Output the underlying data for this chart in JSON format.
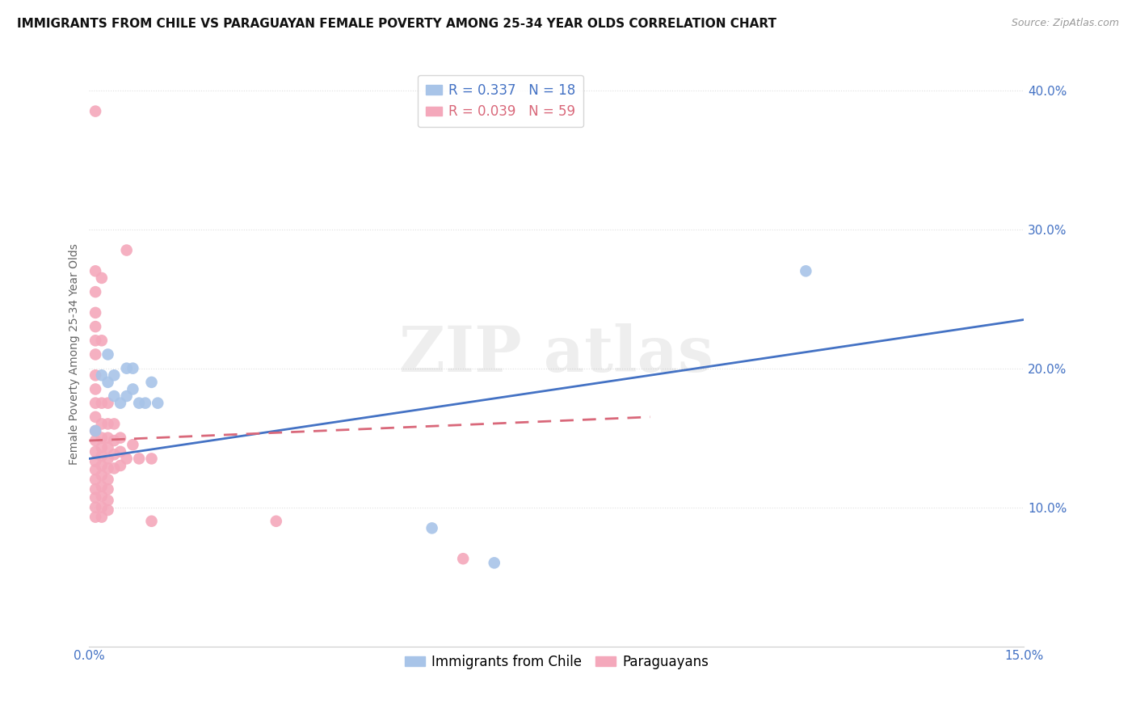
{
  "title": "IMMIGRANTS FROM CHILE VS PARAGUAYAN FEMALE POVERTY AMONG 25-34 YEAR OLDS CORRELATION CHART",
  "source": "Source: ZipAtlas.com",
  "xlabel": "",
  "ylabel": "Female Poverty Among 25-34 Year Olds",
  "xlim": [
    0.0,
    0.15
  ],
  "ylim": [
    0.0,
    0.42
  ],
  "xticks": [
    0.0,
    0.15
  ],
  "xtick_labels": [
    "0.0%",
    "15.0%"
  ],
  "yticks": [
    0.1,
    0.2,
    0.3,
    0.4
  ],
  "ytick_labels": [
    "10.0%",
    "20.0%",
    "30.0%",
    "40.0%"
  ],
  "blue_R": 0.337,
  "blue_N": 18,
  "pink_R": 0.039,
  "pink_N": 59,
  "blue_color": "#a8c4e8",
  "pink_color": "#f4a8bb",
  "blue_line_color": "#4472C4",
  "pink_line_color": "#d9687a",
  "legend_label_blue": "Immigrants from Chile",
  "legend_label_pink": "Paraguayans",
  "blue_points": [
    [
      0.001,
      0.155
    ],
    [
      0.002,
      0.195
    ],
    [
      0.003,
      0.19
    ],
    [
      0.003,
      0.21
    ],
    [
      0.004,
      0.18
    ],
    [
      0.004,
      0.195
    ],
    [
      0.005,
      0.175
    ],
    [
      0.006,
      0.2
    ],
    [
      0.006,
      0.18
    ],
    [
      0.007,
      0.2
    ],
    [
      0.007,
      0.185
    ],
    [
      0.008,
      0.175
    ],
    [
      0.009,
      0.175
    ],
    [
      0.01,
      0.19
    ],
    [
      0.011,
      0.175
    ],
    [
      0.055,
      0.085
    ],
    [
      0.065,
      0.06
    ],
    [
      0.115,
      0.27
    ]
  ],
  "pink_points": [
    [
      0.001,
      0.385
    ],
    [
      0.001,
      0.27
    ],
    [
      0.001,
      0.255
    ],
    [
      0.001,
      0.24
    ],
    [
      0.001,
      0.23
    ],
    [
      0.001,
      0.22
    ],
    [
      0.001,
      0.21
    ],
    [
      0.001,
      0.195
    ],
    [
      0.001,
      0.185
    ],
    [
      0.001,
      0.175
    ],
    [
      0.001,
      0.165
    ],
    [
      0.001,
      0.155
    ],
    [
      0.001,
      0.148
    ],
    [
      0.001,
      0.14
    ],
    [
      0.001,
      0.133
    ],
    [
      0.001,
      0.127
    ],
    [
      0.001,
      0.12
    ],
    [
      0.001,
      0.113
    ],
    [
      0.001,
      0.107
    ],
    [
      0.001,
      0.1
    ],
    [
      0.001,
      0.093
    ],
    [
      0.002,
      0.265
    ],
    [
      0.002,
      0.22
    ],
    [
      0.002,
      0.175
    ],
    [
      0.002,
      0.16
    ],
    [
      0.002,
      0.15
    ],
    [
      0.002,
      0.143
    ],
    [
      0.002,
      0.137
    ],
    [
      0.002,
      0.13
    ],
    [
      0.002,
      0.123
    ],
    [
      0.002,
      0.115
    ],
    [
      0.002,
      0.108
    ],
    [
      0.002,
      0.1
    ],
    [
      0.002,
      0.093
    ],
    [
      0.003,
      0.175
    ],
    [
      0.003,
      0.16
    ],
    [
      0.003,
      0.15
    ],
    [
      0.003,
      0.143
    ],
    [
      0.003,
      0.135
    ],
    [
      0.003,
      0.128
    ],
    [
      0.003,
      0.12
    ],
    [
      0.003,
      0.113
    ],
    [
      0.003,
      0.105
    ],
    [
      0.003,
      0.098
    ],
    [
      0.004,
      0.16
    ],
    [
      0.004,
      0.148
    ],
    [
      0.004,
      0.138
    ],
    [
      0.004,
      0.128
    ],
    [
      0.005,
      0.15
    ],
    [
      0.005,
      0.14
    ],
    [
      0.005,
      0.13
    ],
    [
      0.006,
      0.285
    ],
    [
      0.006,
      0.135
    ],
    [
      0.007,
      0.145
    ],
    [
      0.008,
      0.135
    ],
    [
      0.01,
      0.135
    ],
    [
      0.01,
      0.09
    ],
    [
      0.03,
      0.09
    ],
    [
      0.06,
      0.063
    ]
  ],
  "blue_line": [
    [
      0.0,
      0.135
    ],
    [
      0.15,
      0.235
    ]
  ],
  "pink_line": [
    [
      0.0,
      0.148
    ],
    [
      0.09,
      0.165
    ]
  ],
  "title_fontsize": 11,
  "axis_label_fontsize": 10,
  "tick_fontsize": 11,
  "tick_color": "#4472C4",
  "background_color": "#ffffff",
  "grid_color": "#e0e0e0"
}
